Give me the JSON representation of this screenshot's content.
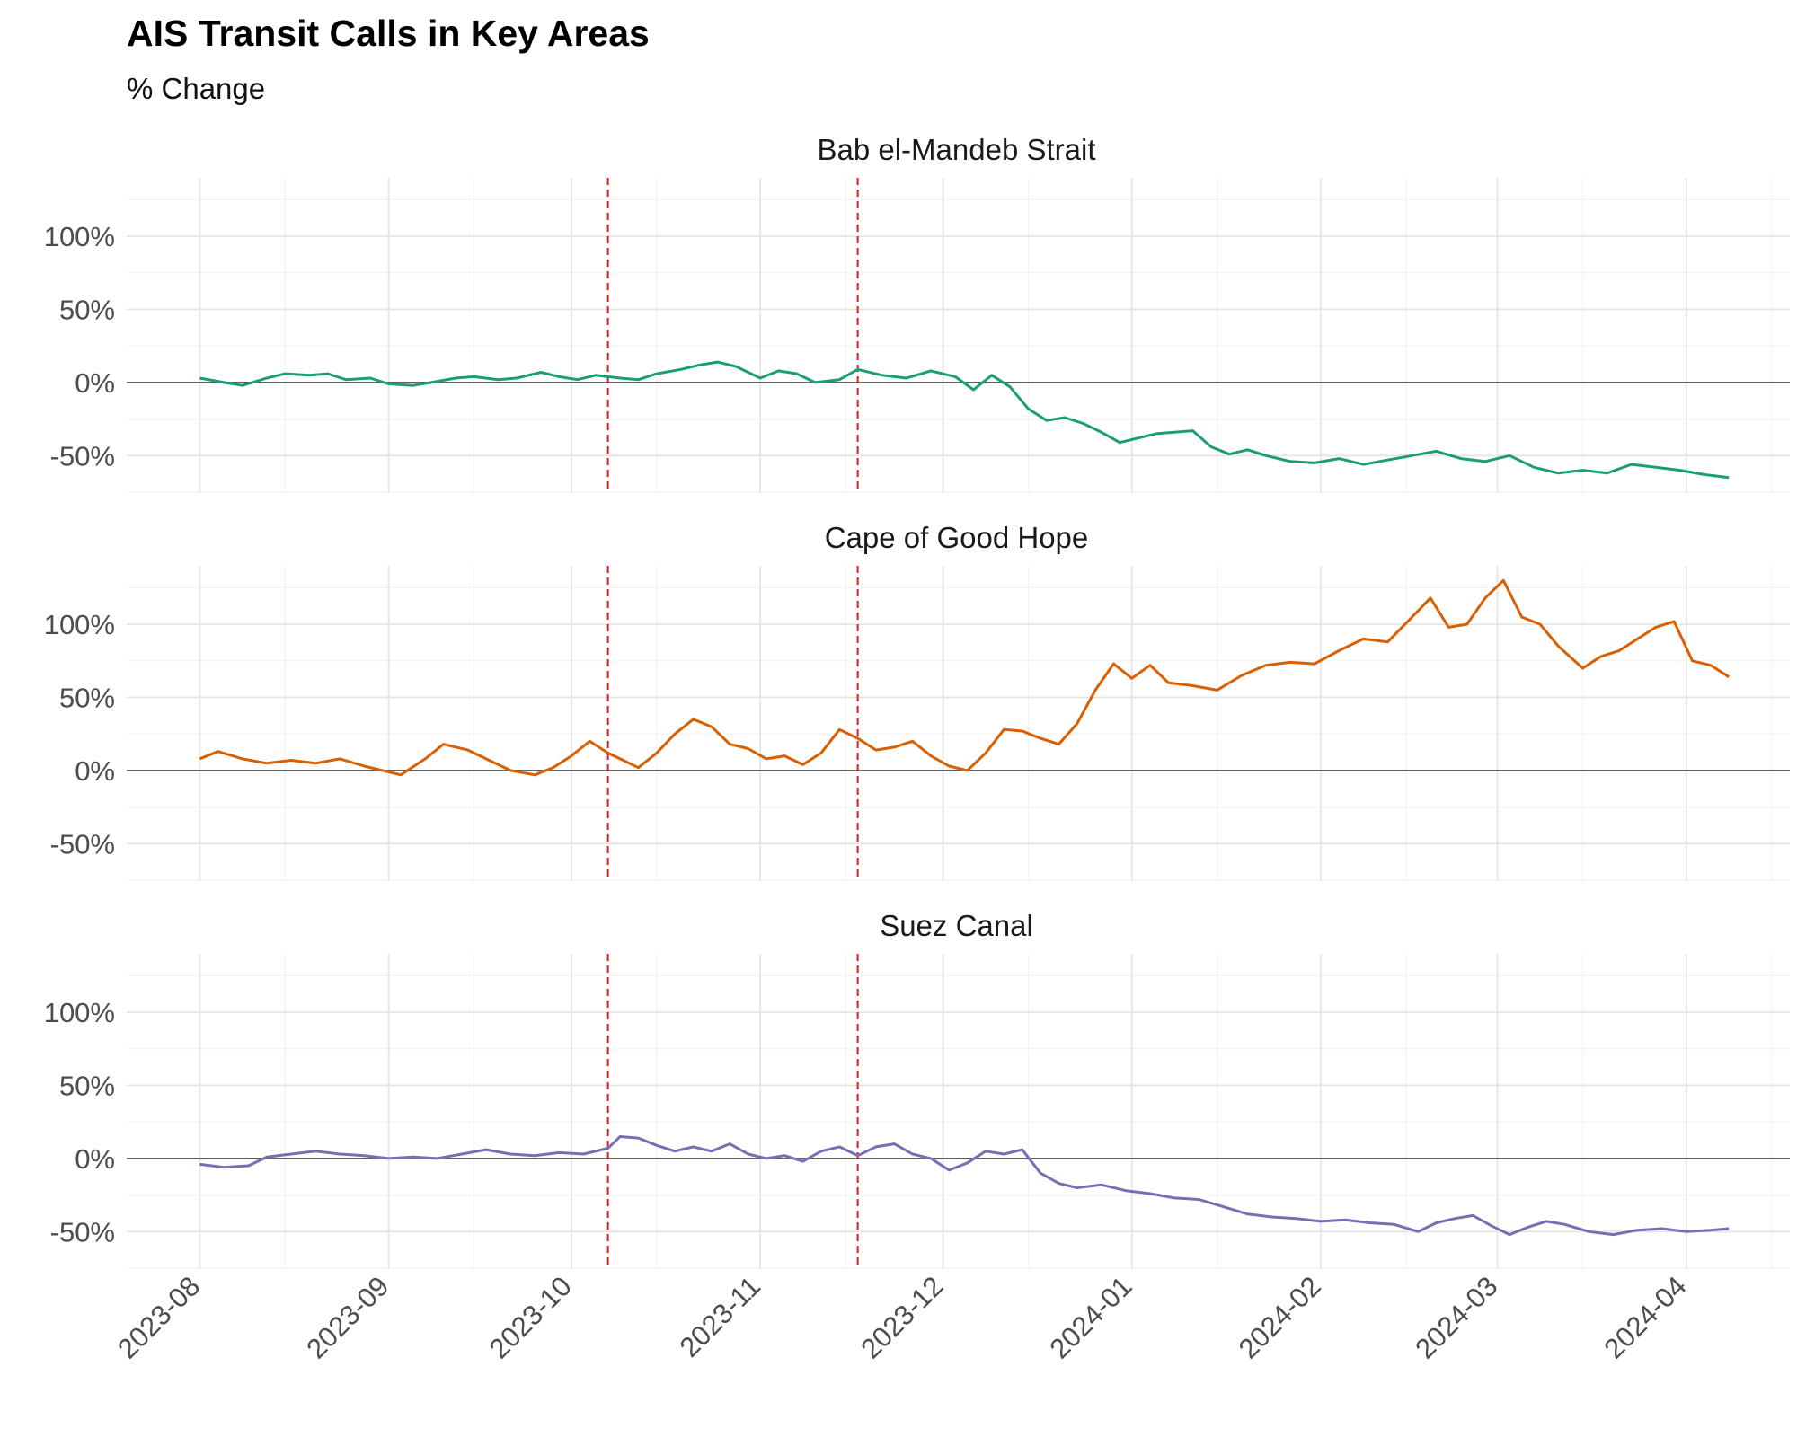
{
  "chart_data": {
    "type": "line",
    "title": "AIS Transit Calls in Key Areas",
    "subtitle": "% Change",
    "xlabel": "",
    "ylabel": "",
    "x_range": [
      "2023-07-20",
      "2024-04-18"
    ],
    "ylim": [
      -75,
      140
    ],
    "y_ticks": [
      -50,
      0,
      50,
      100
    ],
    "y_tick_labels": [
      "-50%",
      "0%",
      "50%",
      "100%"
    ],
    "x_ticks": [
      "2023-08-01",
      "2023-09-01",
      "2023-10-01",
      "2023-11-01",
      "2023-12-01",
      "2024-01-01",
      "2024-02-01",
      "2024-03-01",
      "2024-04-01"
    ],
    "x_tick_labels": [
      "2023-08",
      "2023-09",
      "2023-10",
      "2023-11",
      "2023-12",
      "2024-01",
      "2024-02",
      "2024-03",
      "2024-04"
    ],
    "grid": true,
    "reference_lines": [
      {
        "date": "2023-10-07",
        "color": "#e41a1c",
        "style": "dashed"
      },
      {
        "date": "2023-11-17",
        "color": "#e41a1c",
        "style": "dashed"
      }
    ],
    "colors": {
      "Bab el-Mandeb Strait": "#1b9e77",
      "Cape of Good Hope": "#d95f02",
      "Suez Canal": "#7570b3"
    },
    "series": [
      {
        "name": "Bab el-Mandeb Strait",
        "points": [
          [
            "2023-08-01",
            3
          ],
          [
            "2023-08-05",
            0
          ],
          [
            "2023-08-08",
            -2
          ],
          [
            "2023-08-12",
            3
          ],
          [
            "2023-08-15",
            6
          ],
          [
            "2023-08-19",
            5
          ],
          [
            "2023-08-22",
            6
          ],
          [
            "2023-08-25",
            2
          ],
          [
            "2023-08-29",
            3
          ],
          [
            "2023-09-01",
            -1
          ],
          [
            "2023-09-05",
            -2
          ],
          [
            "2023-09-08",
            0
          ],
          [
            "2023-09-12",
            3
          ],
          [
            "2023-09-15",
            4
          ],
          [
            "2023-09-19",
            2
          ],
          [
            "2023-09-22",
            3
          ],
          [
            "2023-09-26",
            7
          ],
          [
            "2023-09-29",
            4
          ],
          [
            "2023-10-02",
            2
          ],
          [
            "2023-10-05",
            5
          ],
          [
            "2023-10-07",
            4
          ],
          [
            "2023-10-09",
            3
          ],
          [
            "2023-10-12",
            2
          ],
          [
            "2023-10-15",
            6
          ],
          [
            "2023-10-19",
            9
          ],
          [
            "2023-10-22",
            12
          ],
          [
            "2023-10-25",
            14
          ],
          [
            "2023-10-28",
            11
          ],
          [
            "2023-11-01",
            3
          ],
          [
            "2023-11-04",
            8
          ],
          [
            "2023-11-07",
            6
          ],
          [
            "2023-11-10",
            0
          ],
          [
            "2023-11-14",
            2
          ],
          [
            "2023-11-17",
            9
          ],
          [
            "2023-11-21",
            5
          ],
          [
            "2023-11-25",
            3
          ],
          [
            "2023-11-29",
            8
          ],
          [
            "2023-12-03",
            4
          ],
          [
            "2023-12-06",
            -5
          ],
          [
            "2023-12-09",
            5
          ],
          [
            "2023-12-12",
            -3
          ],
          [
            "2023-12-15",
            -18
          ],
          [
            "2023-12-18",
            -26
          ],
          [
            "2023-12-21",
            -24
          ],
          [
            "2023-12-24",
            -28
          ],
          [
            "2023-12-27",
            -34
          ],
          [
            "2023-12-30",
            -41
          ],
          [
            "2024-01-02",
            -38
          ],
          [
            "2024-01-05",
            -35
          ],
          [
            "2024-01-08",
            -34
          ],
          [
            "2024-01-11",
            -33
          ],
          [
            "2024-01-14",
            -44
          ],
          [
            "2024-01-17",
            -49
          ],
          [
            "2024-01-20",
            -46
          ],
          [
            "2024-01-23",
            -50
          ],
          [
            "2024-01-27",
            -54
          ],
          [
            "2024-01-31",
            -55
          ],
          [
            "2024-02-04",
            -52
          ],
          [
            "2024-02-08",
            -56
          ],
          [
            "2024-02-12",
            -53
          ],
          [
            "2024-02-16",
            -50
          ],
          [
            "2024-02-20",
            -47
          ],
          [
            "2024-02-24",
            -52
          ],
          [
            "2024-02-28",
            -54
          ],
          [
            "2024-03-03",
            -50
          ],
          [
            "2024-03-07",
            -58
          ],
          [
            "2024-03-11",
            -62
          ],
          [
            "2024-03-15",
            -60
          ],
          [
            "2024-03-19",
            -62
          ],
          [
            "2024-03-23",
            -56
          ],
          [
            "2024-03-27",
            -58
          ],
          [
            "2024-03-31",
            -60
          ],
          [
            "2024-04-04",
            -63
          ],
          [
            "2024-04-08",
            -65
          ]
        ]
      },
      {
        "name": "Cape of Good Hope",
        "points": [
          [
            "2023-08-01",
            8
          ],
          [
            "2023-08-04",
            13
          ],
          [
            "2023-08-08",
            8
          ],
          [
            "2023-08-12",
            5
          ],
          [
            "2023-08-16",
            7
          ],
          [
            "2023-08-20",
            5
          ],
          [
            "2023-08-24",
            8
          ],
          [
            "2023-08-28",
            3
          ],
          [
            "2023-08-31",
            0
          ],
          [
            "2023-09-03",
            -3
          ],
          [
            "2023-09-07",
            8
          ],
          [
            "2023-09-10",
            18
          ],
          [
            "2023-09-14",
            14
          ],
          [
            "2023-09-17",
            8
          ],
          [
            "2023-09-21",
            0
          ],
          [
            "2023-09-25",
            -3
          ],
          [
            "2023-09-28",
            2
          ],
          [
            "2023-10-01",
            10
          ],
          [
            "2023-10-04",
            20
          ],
          [
            "2023-10-07",
            12
          ],
          [
            "2023-10-09",
            8
          ],
          [
            "2023-10-12",
            2
          ],
          [
            "2023-10-15",
            12
          ],
          [
            "2023-10-18",
            25
          ],
          [
            "2023-10-21",
            35
          ],
          [
            "2023-10-24",
            30
          ],
          [
            "2023-10-27",
            18
          ],
          [
            "2023-10-30",
            15
          ],
          [
            "2023-11-02",
            8
          ],
          [
            "2023-11-05",
            10
          ],
          [
            "2023-11-08",
            4
          ],
          [
            "2023-11-11",
            12
          ],
          [
            "2023-11-14",
            28
          ],
          [
            "2023-11-17",
            22
          ],
          [
            "2023-11-20",
            14
          ],
          [
            "2023-11-23",
            16
          ],
          [
            "2023-11-26",
            20
          ],
          [
            "2023-11-29",
            10
          ],
          [
            "2023-12-02",
            3
          ],
          [
            "2023-12-05",
            0
          ],
          [
            "2023-12-08",
            12
          ],
          [
            "2023-12-11",
            28
          ],
          [
            "2023-12-14",
            27
          ],
          [
            "2023-12-17",
            22
          ],
          [
            "2023-12-20",
            18
          ],
          [
            "2023-12-23",
            32
          ],
          [
            "2023-12-26",
            55
          ],
          [
            "2023-12-29",
            73
          ],
          [
            "2024-01-01",
            63
          ],
          [
            "2024-01-04",
            72
          ],
          [
            "2024-01-07",
            60
          ],
          [
            "2024-01-11",
            58
          ],
          [
            "2024-01-15",
            55
          ],
          [
            "2024-01-19",
            65
          ],
          [
            "2024-01-23",
            72
          ],
          [
            "2024-01-27",
            74
          ],
          [
            "2024-01-31",
            73
          ],
          [
            "2024-02-04",
            82
          ],
          [
            "2024-02-08",
            90
          ],
          [
            "2024-02-12",
            88
          ],
          [
            "2024-02-16",
            105
          ],
          [
            "2024-02-19",
            118
          ],
          [
            "2024-02-22",
            98
          ],
          [
            "2024-02-25",
            100
          ],
          [
            "2024-02-28",
            118
          ],
          [
            "2024-03-02",
            130
          ],
          [
            "2024-03-05",
            105
          ],
          [
            "2024-03-08",
            100
          ],
          [
            "2024-03-11",
            85
          ],
          [
            "2024-03-15",
            70
          ],
          [
            "2024-03-18",
            78
          ],
          [
            "2024-03-21",
            82
          ],
          [
            "2024-03-24",
            90
          ],
          [
            "2024-03-27",
            98
          ],
          [
            "2024-03-30",
            102
          ],
          [
            "2024-04-02",
            75
          ],
          [
            "2024-04-05",
            72
          ],
          [
            "2024-04-08",
            64
          ]
        ]
      },
      {
        "name": "Suez Canal",
        "points": [
          [
            "2023-08-01",
            -4
          ],
          [
            "2023-08-05",
            -6
          ],
          [
            "2023-08-09",
            -5
          ],
          [
            "2023-08-12",
            1
          ],
          [
            "2023-08-16",
            3
          ],
          [
            "2023-08-20",
            5
          ],
          [
            "2023-08-24",
            3
          ],
          [
            "2023-08-28",
            2
          ],
          [
            "2023-09-01",
            0
          ],
          [
            "2023-09-05",
            1
          ],
          [
            "2023-09-09",
            0
          ],
          [
            "2023-09-13",
            3
          ],
          [
            "2023-09-17",
            6
          ],
          [
            "2023-09-21",
            3
          ],
          [
            "2023-09-25",
            2
          ],
          [
            "2023-09-29",
            4
          ],
          [
            "2023-10-03",
            3
          ],
          [
            "2023-10-07",
            7
          ],
          [
            "2023-10-09",
            15
          ],
          [
            "2023-10-12",
            14
          ],
          [
            "2023-10-15",
            9
          ],
          [
            "2023-10-18",
            5
          ],
          [
            "2023-10-21",
            8
          ],
          [
            "2023-10-24",
            5
          ],
          [
            "2023-10-27",
            10
          ],
          [
            "2023-10-30",
            3
          ],
          [
            "2023-11-02",
            0
          ],
          [
            "2023-11-05",
            2
          ],
          [
            "2023-11-08",
            -2
          ],
          [
            "2023-11-11",
            5
          ],
          [
            "2023-11-14",
            8
          ],
          [
            "2023-11-17",
            2
          ],
          [
            "2023-11-20",
            8
          ],
          [
            "2023-11-23",
            10
          ],
          [
            "2023-11-26",
            3
          ],
          [
            "2023-11-29",
            0
          ],
          [
            "2023-12-02",
            -8
          ],
          [
            "2023-12-05",
            -3
          ],
          [
            "2023-12-08",
            5
          ],
          [
            "2023-12-11",
            3
          ],
          [
            "2023-12-14",
            6
          ],
          [
            "2023-12-17",
            -10
          ],
          [
            "2023-12-20",
            -17
          ],
          [
            "2023-12-23",
            -20
          ],
          [
            "2023-12-27",
            -18
          ],
          [
            "2023-12-31",
            -22
          ],
          [
            "2024-01-04",
            -24
          ],
          [
            "2024-01-08",
            -27
          ],
          [
            "2024-01-12",
            -28
          ],
          [
            "2024-01-16",
            -33
          ],
          [
            "2024-01-20",
            -38
          ],
          [
            "2024-01-24",
            -40
          ],
          [
            "2024-01-28",
            -41
          ],
          [
            "2024-02-01",
            -43
          ],
          [
            "2024-02-05",
            -42
          ],
          [
            "2024-02-09",
            -44
          ],
          [
            "2024-02-13",
            -45
          ],
          [
            "2024-02-17",
            -50
          ],
          [
            "2024-02-20",
            -44
          ],
          [
            "2024-02-23",
            -41
          ],
          [
            "2024-02-26",
            -39
          ],
          [
            "2024-02-29",
            -46
          ],
          [
            "2024-03-03",
            -52
          ],
          [
            "2024-03-06",
            -47
          ],
          [
            "2024-03-09",
            -43
          ],
          [
            "2024-03-12",
            -45
          ],
          [
            "2024-03-16",
            -50
          ],
          [
            "2024-03-20",
            -52
          ],
          [
            "2024-03-24",
            -49
          ],
          [
            "2024-03-28",
            -48
          ],
          [
            "2024-04-01",
            -50
          ],
          [
            "2024-04-05",
            -49
          ],
          [
            "2024-04-08",
            -48
          ]
        ]
      }
    ]
  }
}
